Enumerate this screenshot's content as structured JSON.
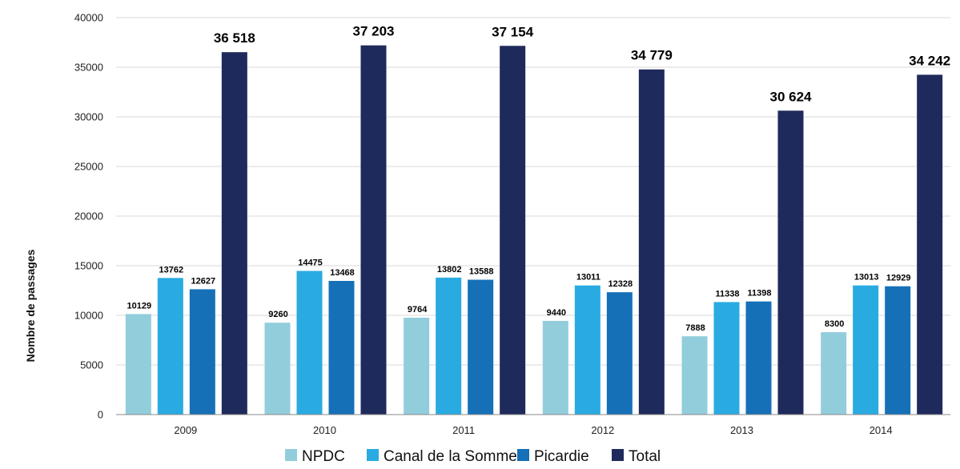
{
  "chart_data": {
    "type": "bar",
    "title": "",
    "xlabel": "",
    "ylabel": "Nombre de passages",
    "ylim": [
      0,
      40000
    ],
    "yticks": [
      0,
      5000,
      10000,
      15000,
      20000,
      25000,
      30000,
      35000,
      40000
    ],
    "grid": true,
    "legend_position": "bottom",
    "categories": [
      "2009",
      "2010",
      "2011",
      "2012",
      "2013",
      "2014"
    ],
    "series": [
      {
        "name": "NPDC",
        "color": "#92CDDC",
        "values": [
          10129,
          9260,
          9764,
          9440,
          7888,
          8300
        ],
        "labels": [
          "10129",
          "9260",
          "9764",
          "9440",
          "7888",
          "8300"
        ]
      },
      {
        "name": "Canal de la Somme",
        "color": "#29ABE2",
        "values": [
          13762,
          14475,
          13802,
          13011,
          11338,
          13013
        ],
        "labels": [
          "13762",
          "14475",
          "13802",
          "13011",
          "11338",
          "13013"
        ]
      },
      {
        "name": "Picardie",
        "color": "#1570B8",
        "values": [
          12627,
          13468,
          13588,
          12328,
          11398,
          12929
        ],
        "labels": [
          "12627",
          "13468",
          "13588",
          "12328",
          "11398",
          "12929"
        ]
      },
      {
        "name": "Total",
        "color": "#1F2A5C",
        "values": [
          36518,
          37203,
          37154,
          34779,
          30624,
          34242
        ],
        "labels": [
          "36 518",
          "37 203",
          "37 154",
          "34 779",
          "30 624",
          "34 242"
        ]
      }
    ]
  }
}
